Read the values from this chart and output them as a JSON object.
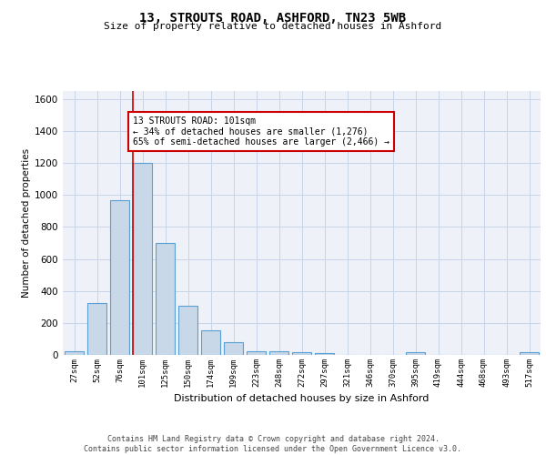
{
  "title1": "13, STROUTS ROAD, ASHFORD, TN23 5WB",
  "title2": "Size of property relative to detached houses in Ashford",
  "xlabel": "Distribution of detached houses by size in Ashford",
  "ylabel": "Number of detached properties",
  "categories": [
    "27sqm",
    "52sqm",
    "76sqm",
    "101sqm",
    "125sqm",
    "150sqm",
    "174sqm",
    "199sqm",
    "223sqm",
    "248sqm",
    "272sqm",
    "297sqm",
    "321sqm",
    "346sqm",
    "370sqm",
    "395sqm",
    "419sqm",
    "444sqm",
    "468sqm",
    "493sqm",
    "517sqm"
  ],
  "values": [
    25,
    325,
    970,
    1200,
    700,
    310,
    155,
    80,
    25,
    20,
    15,
    10,
    0,
    0,
    0,
    15,
    0,
    0,
    0,
    0,
    15
  ],
  "bar_color": "#c8d8e8",
  "bar_edge_color": "#5a9fd4",
  "red_line_index": 3,
  "annotation_line1": "13 STROUTS ROAD: 101sqm",
  "annotation_line2": "← 34% of detached houses are smaller (1,276)",
  "annotation_line3": "65% of semi-detached houses are larger (2,466) →",
  "annotation_box_color": "#ffffff",
  "annotation_box_edge": "#cc0000",
  "ylim": [
    0,
    1650
  ],
  "yticks": [
    0,
    200,
    400,
    600,
    800,
    1000,
    1200,
    1400,
    1600
  ],
  "grid_color": "#c8d4e8",
  "bg_color": "#eef2f8",
  "footer": "Contains HM Land Registry data © Crown copyright and database right 2024.\nContains public sector information licensed under the Open Government Licence v3.0."
}
